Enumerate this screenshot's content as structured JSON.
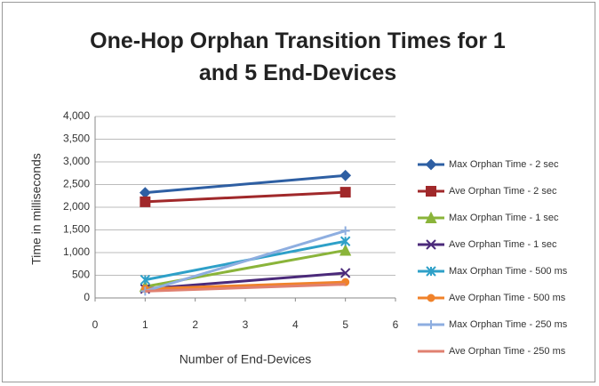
{
  "chart_data": {
    "type": "line",
    "title": "One-Hop Orphan Transition Times for 1 and 5 End-Devices",
    "x_label": "Number of End-Devices",
    "y_label": "Time in milliseconds",
    "x": [
      1,
      5
    ],
    "xlim": [
      0,
      6
    ],
    "xticks": [
      0,
      1,
      2,
      3,
      4,
      5,
      6
    ],
    "ylim": [
      0,
      4000
    ],
    "yticks": [
      0,
      500,
      {
        "value": 1000,
        "label": "1,000"
      },
      {
        "value": 1500,
        "label": "1,500"
      },
      {
        "value": 2000,
        "label": "2,000"
      },
      {
        "value": 2500,
        "label": "2,500"
      },
      {
        "value": 3000,
        "label": "3,000"
      },
      {
        "value": 3500,
        "label": "3,500"
      },
      {
        "value": 4000,
        "label": "4,000"
      }
    ],
    "grid": true,
    "legend": "right",
    "series": [
      {
        "name": "Max Orphan Time - 2 sec",
        "color": "#2e5fa3",
        "marker": "diamond",
        "values": [
          2320,
          2700
        ]
      },
      {
        "name": "Ave Orphan Time - 2 sec",
        "color": "#a0282a",
        "marker": "square",
        "values": [
          2120,
          2330
        ]
      },
      {
        "name": "Max Orphan Time - 1 sec",
        "color": "#8ab43a",
        "marker": "triangle",
        "values": [
          250,
          1050
        ]
      },
      {
        "name": "Ave Orphan Time - 1 sec",
        "color": "#4b2a7a",
        "marker": "x",
        "values": [
          200,
          550
        ]
      },
      {
        "name": "Max Orphan Time - 500 ms",
        "color": "#2ea0c8",
        "marker": "star",
        "values": [
          400,
          1250
        ]
      },
      {
        "name": "Ave Orphan Time - 500 ms",
        "color": "#f0822a",
        "marker": "circle",
        "values": [
          200,
          350
        ]
      },
      {
        "name": "Max Orphan Time - 250 ms",
        "color": "#8eaee0",
        "marker": "plus",
        "values": [
          150,
          1480
        ]
      },
      {
        "name": "Ave Orphan Time - 250 ms",
        "color": "#e08070",
        "marker": "none",
        "values": [
          150,
          300
        ]
      }
    ]
  }
}
